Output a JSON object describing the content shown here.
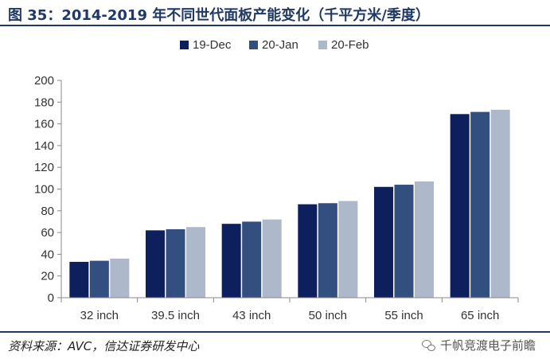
{
  "figure": {
    "title": "图 35：2014-2019 年不同世代面板产能变化（千平方米/季度）",
    "source": "资料来源：AVC，信达证券研发中心",
    "watermark": "千帆竞渡电子前瞻",
    "watermark_icon": "wechat-icon"
  },
  "colors": {
    "header_line": "#1f3864",
    "series": [
      "#0d1f5c",
      "#324f7f",
      "#adb9ca"
    ]
  },
  "chart_data": {
    "type": "bar",
    "categories": [
      "32 inch",
      "39.5 inch",
      "43 inch",
      "50 inch",
      "55 inch",
      "65 inch"
    ],
    "series": [
      {
        "name": "19-Dec",
        "values": [
          33,
          62,
          68,
          86,
          102,
          169
        ]
      },
      {
        "name": "20-Jan",
        "values": [
          34,
          63,
          70,
          87,
          104,
          171
        ]
      },
      {
        "name": "20-Feb",
        "values": [
          36,
          65,
          72,
          89,
          107,
          173
        ]
      }
    ],
    "ylim": [
      0,
      200
    ],
    "yticks": [
      "0",
      "20",
      "40",
      "60",
      "80",
      "100",
      "120",
      "140",
      "160",
      "180",
      "200"
    ],
    "grid": false,
    "legend_position": "top-center"
  }
}
